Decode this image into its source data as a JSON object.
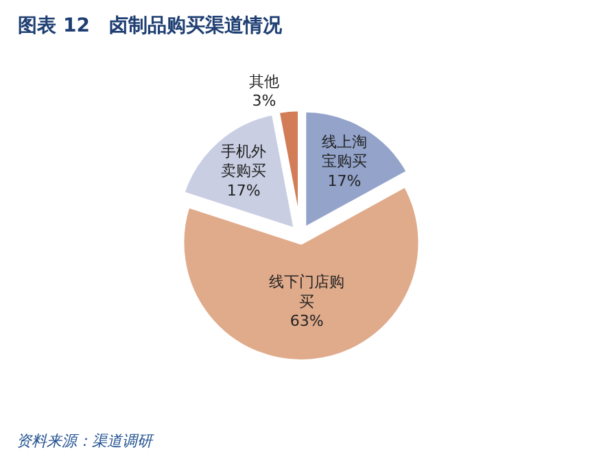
{
  "chart_data": {
    "type": "pie",
    "title": "图表 12　卤制品购买渠道情况",
    "categories": [
      "线上淘宝购买",
      "线下门店购买",
      "手机外卖购买",
      "其他"
    ],
    "values": [
      17,
      63,
      17,
      3
    ],
    "value_labels": [
      "17%",
      "63%",
      "17%",
      "3%"
    ],
    "colors": [
      "#93a3c9",
      "#e0ab8b",
      "#c9cee3",
      "#d27d57"
    ],
    "annotations": [
      "资料来源：渠道调研"
    ],
    "legend": false
  }
}
